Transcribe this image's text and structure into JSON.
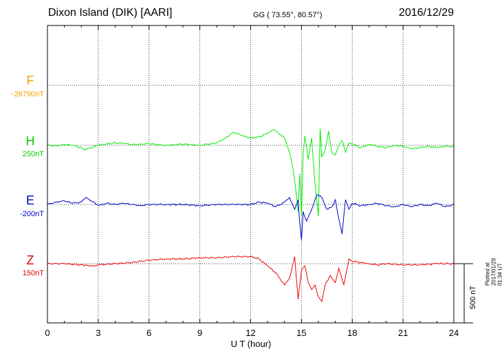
{
  "header": {
    "station": "Dixon Island (DIK)  [AARI]",
    "coords": "GG ( 73.55°,  80.57°)",
    "date": "2016/12/29"
  },
  "components": [
    {
      "letter": "F",
      "base": "-26790nT",
      "color": "#f5a000"
    },
    {
      "letter": "H",
      "base": "250nT",
      "color": "#00cc00"
    },
    {
      "letter": "E",
      "base": "-200nT",
      "color": "#0000cc"
    },
    {
      "letter": "Z",
      "base": "150nT",
      "color": "#dd0000"
    }
  ],
  "footer_note": "Plotted at 2017/01/29 01:34 UT",
  "chart_data": {
    "type": "line",
    "xlabel": "U T (hour)",
    "xlim": [
      0,
      24
    ],
    "x_ticks": [
      "0",
      "3",
      "6",
      "9",
      "12",
      "15",
      "18",
      "21",
      "24"
    ],
    "scale_bar_label": "500 nT",
    "scale_bar_nT": 500,
    "grid": true,
    "series": [
      {
        "name": "H",
        "color": "#00ee00",
        "x": [
          0,
          0.5,
          1,
          1.5,
          2,
          2.2,
          2.5,
          3,
          3.5,
          4,
          4.5,
          5,
          5.5,
          6,
          6.5,
          7,
          7.5,
          8,
          8.5,
          9,
          9.5,
          10,
          10.5,
          11,
          11.5,
          12,
          12.5,
          13,
          13.3,
          13.6,
          14,
          14.3,
          14.5,
          14.7,
          14.8,
          14.9,
          15.0,
          15.1,
          15.2,
          15.4,
          15.6,
          15.8,
          16.0,
          16.1,
          16.2,
          16.4,
          16.6,
          16.8,
          17.0,
          17.2,
          17.4,
          17.6,
          17.8,
          18,
          18.5,
          19,
          19.5,
          20,
          20.5,
          21,
          21.5,
          22,
          22.5,
          23,
          23.5,
          24
        ],
        "values": [
          0,
          -5,
          5,
          0,
          -20,
          -40,
          -25,
          0,
          10,
          20,
          15,
          5,
          10,
          15,
          5,
          0,
          5,
          10,
          5,
          0,
          10,
          20,
          60,
          110,
          80,
          60,
          70,
          100,
          130,
          110,
          60,
          -60,
          -200,
          -420,
          -560,
          -240,
          -600,
          -80,
          80,
          -120,
          60,
          -320,
          -600,
          140,
          -100,
          -40,
          120,
          -60,
          -80,
          0,
          40,
          -60,
          20,
          10,
          -20,
          10,
          -10,
          -20,
          0,
          -10,
          -30,
          -20,
          -10,
          -20,
          -10,
          -10
        ]
      },
      {
        "name": "E",
        "color": "#0000cc",
        "x": [
          0,
          0.5,
          1,
          1.5,
          2,
          2.3,
          2.6,
          3,
          3.5,
          4,
          4.5,
          5,
          5.5,
          6,
          7,
          8,
          9,
          10,
          11,
          12,
          12.5,
          13,
          13.5,
          14,
          14.3,
          14.6,
          14.8,
          14.9,
          15.0,
          15.1,
          15.3,
          15.6,
          15.9,
          16.2,
          16.5,
          16.8,
          17.0,
          17.2,
          17.4,
          17.6,
          17.8,
          18,
          18.5,
          19,
          19.5,
          20,
          20.5,
          21,
          21.5,
          22,
          22.5,
          23,
          23.5,
          24
        ],
        "values": [
          0,
          20,
          30,
          10,
          20,
          60,
          30,
          -10,
          10,
          0,
          10,
          0,
          -10,
          0,
          0,
          0,
          -10,
          0,
          0,
          0,
          20,
          10,
          -20,
          20,
          60,
          -40,
          40,
          -160,
          -300,
          -60,
          -140,
          -40,
          80,
          60,
          -40,
          -20,
          40,
          -120,
          -250,
          40,
          -40,
          10,
          -10,
          0,
          10,
          -10,
          -20,
          0,
          -20,
          0,
          -10,
          10,
          -20,
          0
        ]
      },
      {
        "name": "Z",
        "color": "#ee0000",
        "x": [
          0,
          1,
          2,
          2.7,
          3,
          4,
          5,
          6,
          7,
          8,
          9,
          10,
          11,
          12,
          12.5,
          13,
          13.5,
          14,
          14.3,
          14.6,
          14.8,
          15.0,
          15.2,
          15.4,
          15.6,
          15.8,
          16.0,
          16.2,
          16.4,
          16.7,
          17.0,
          17.2,
          17.5,
          17.8,
          18,
          18.5,
          19,
          19.5,
          20,
          21,
          22,
          23,
          24
        ],
        "values": [
          0,
          0,
          -10,
          -20,
          -10,
          0,
          10,
          30,
          40,
          40,
          50,
          50,
          60,
          60,
          40,
          -20,
          -80,
          -180,
          -120,
          60,
          -300,
          -60,
          -20,
          -160,
          -220,
          -180,
          -280,
          -320,
          -180,
          -100,
          -160,
          -40,
          -180,
          40,
          20,
          10,
          0,
          -10,
          0,
          -10,
          -10,
          0,
          0
        ]
      }
    ]
  }
}
